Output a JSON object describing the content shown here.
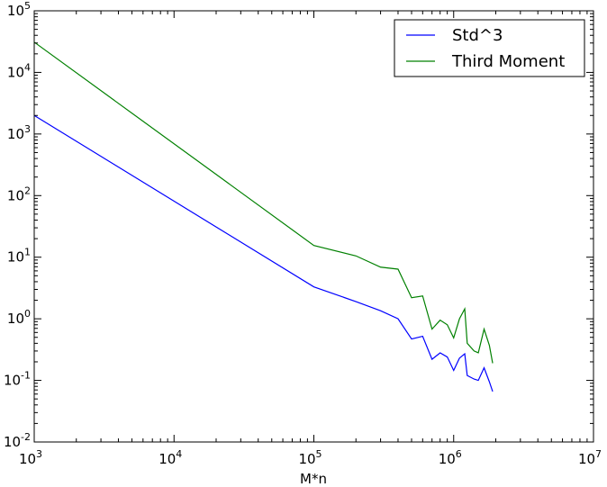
{
  "chart_data": {
    "type": "line",
    "title": "",
    "xlabel": "M*n",
    "ylabel": "",
    "xscale": "log",
    "yscale": "log",
    "xlim": [
      1000,
      10000000
    ],
    "ylim": [
      0.01,
      100000
    ],
    "grid": false,
    "legend_location": "upper right",
    "x_ticks": [
      {
        "base": "10",
        "exp": "3"
      },
      {
        "base": "10",
        "exp": "4"
      },
      {
        "base": "10",
        "exp": "5"
      },
      {
        "base": "10",
        "exp": "6"
      },
      {
        "base": "10",
        "exp": "7"
      }
    ],
    "y_ticks": [
      {
        "base": "10",
        "exp": "-2"
      },
      {
        "base": "10",
        "exp": "-1"
      },
      {
        "base": "10",
        "exp": "0"
      },
      {
        "base": "10",
        "exp": "1"
      },
      {
        "base": "10",
        "exp": "2"
      },
      {
        "base": "10",
        "exp": "3"
      },
      {
        "base": "10",
        "exp": "4"
      },
      {
        "base": "10",
        "exp": "5"
      }
    ],
    "series": [
      {
        "name": "Std^3",
        "color": "#0000ff",
        "points": [
          [
            1000,
            2000
          ],
          [
            100000,
            3.3
          ],
          [
            200000,
            1.9
          ],
          [
            300000,
            1.35
          ],
          [
            400000,
            1.0
          ],
          [
            500000,
            0.47
          ],
          [
            600000,
            0.52
          ],
          [
            700000,
            0.22
          ],
          [
            800000,
            0.28
          ],
          [
            900000,
            0.24
          ],
          [
            1000000,
            0.145
          ],
          [
            1100000,
            0.23
          ],
          [
            1200000,
            0.27
          ],
          [
            1250000,
            0.12
          ],
          [
            1400000,
            0.105
          ],
          [
            1500000,
            0.1
          ],
          [
            1650000,
            0.16
          ],
          [
            1800000,
            0.095
          ],
          [
            1900000,
            0.066
          ]
        ]
      },
      {
        "name": "Third Moment",
        "color": "#008000",
        "points": [
          [
            1000,
            31000
          ],
          [
            100000,
            15.5
          ],
          [
            200000,
            10.5
          ],
          [
            300000,
            6.9
          ],
          [
            400000,
            6.4
          ],
          [
            500000,
            2.2
          ],
          [
            600000,
            2.35
          ],
          [
            700000,
            0.68
          ],
          [
            800000,
            0.95
          ],
          [
            900000,
            0.8
          ],
          [
            1000000,
            0.49
          ],
          [
            1100000,
            1.0
          ],
          [
            1200000,
            1.45
          ],
          [
            1250000,
            0.4
          ],
          [
            1400000,
            0.3
          ],
          [
            1500000,
            0.28
          ],
          [
            1650000,
            0.68
          ],
          [
            1800000,
            0.37
          ],
          [
            1900000,
            0.19
          ]
        ]
      }
    ]
  }
}
